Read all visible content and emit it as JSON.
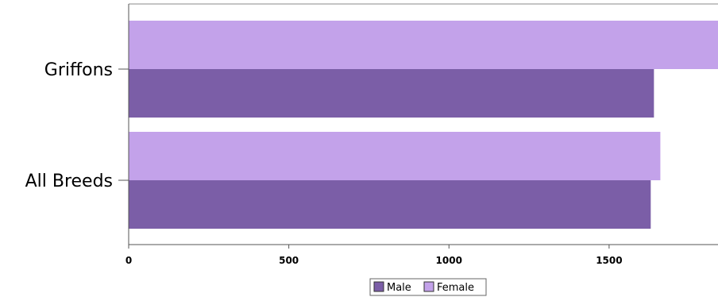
{
  "chart_data": {
    "type": "bar",
    "orientation": "horizontal",
    "categories": [
      "Griffons",
      "All Breeds"
    ],
    "series": [
      {
        "name": "Male",
        "values": [
          1640,
          1630
        ],
        "color": "#7b5ea7"
      },
      {
        "name": "Female",
        "values": [
          1840,
          1660
        ],
        "color": "#c3a2ea"
      }
    ],
    "xlim": [
      0,
      1840
    ],
    "xticks": [
      0,
      500,
      1000,
      1500
    ],
    "title": "",
    "xlabel": "",
    "ylabel": "",
    "grid": false,
    "legend_position": "bottom-center"
  }
}
